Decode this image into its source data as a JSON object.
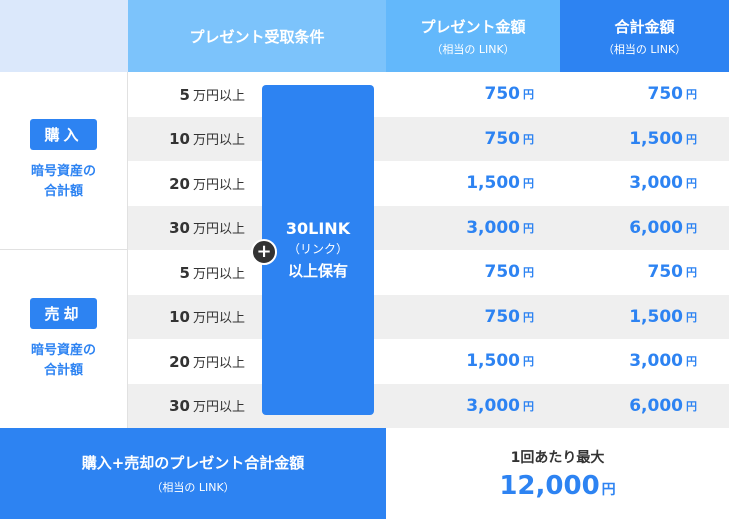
{
  "header": {
    "condition": "プレゼント受取条件",
    "gift_title": "プレゼント金額",
    "gift_sub": "（相当の LINK）",
    "total_title": "合計金額",
    "total_sub": "（相当の LINK）"
  },
  "buy": {
    "badge": "購入",
    "sub1": "暗号資産の",
    "sub2": "合計額"
  },
  "sell": {
    "badge": "売却",
    "sub1": "暗号資産の",
    "sub2": "合計額"
  },
  "unit_label": "万円以上",
  "yen": "円",
  "plus": "+",
  "link_block": {
    "line1": "30LINK",
    "line2": "（リンク）",
    "line3": "以上保有"
  },
  "rows": [
    {
      "cond": "5",
      "gift": "750",
      "total": "750"
    },
    {
      "cond": "10",
      "gift": "750",
      "total": "1,500"
    },
    {
      "cond": "20",
      "gift": "1,500",
      "total": "3,000"
    },
    {
      "cond": "30",
      "gift": "3,000",
      "total": "6,000"
    },
    {
      "cond": "5",
      "gift": "750",
      "total": "750"
    },
    {
      "cond": "10",
      "gift": "750",
      "total": "1,500"
    },
    {
      "cond": "20",
      "gift": "1,500",
      "total": "3,000"
    },
    {
      "cond": "30",
      "gift": "3,000",
      "total": "6,000"
    }
  ],
  "footer": {
    "left_main": "購入+売却のプレゼント合計金額",
    "left_sub": "（相当の LINK）",
    "right_main": "1回あたり最大",
    "right_amount": "12,000",
    "right_unit": "円"
  },
  "colors": {
    "accent": "#2d83f2",
    "header_light": "#7cc3fb",
    "header_mid": "#63b8fb",
    "row_gray": "#efefef"
  }
}
